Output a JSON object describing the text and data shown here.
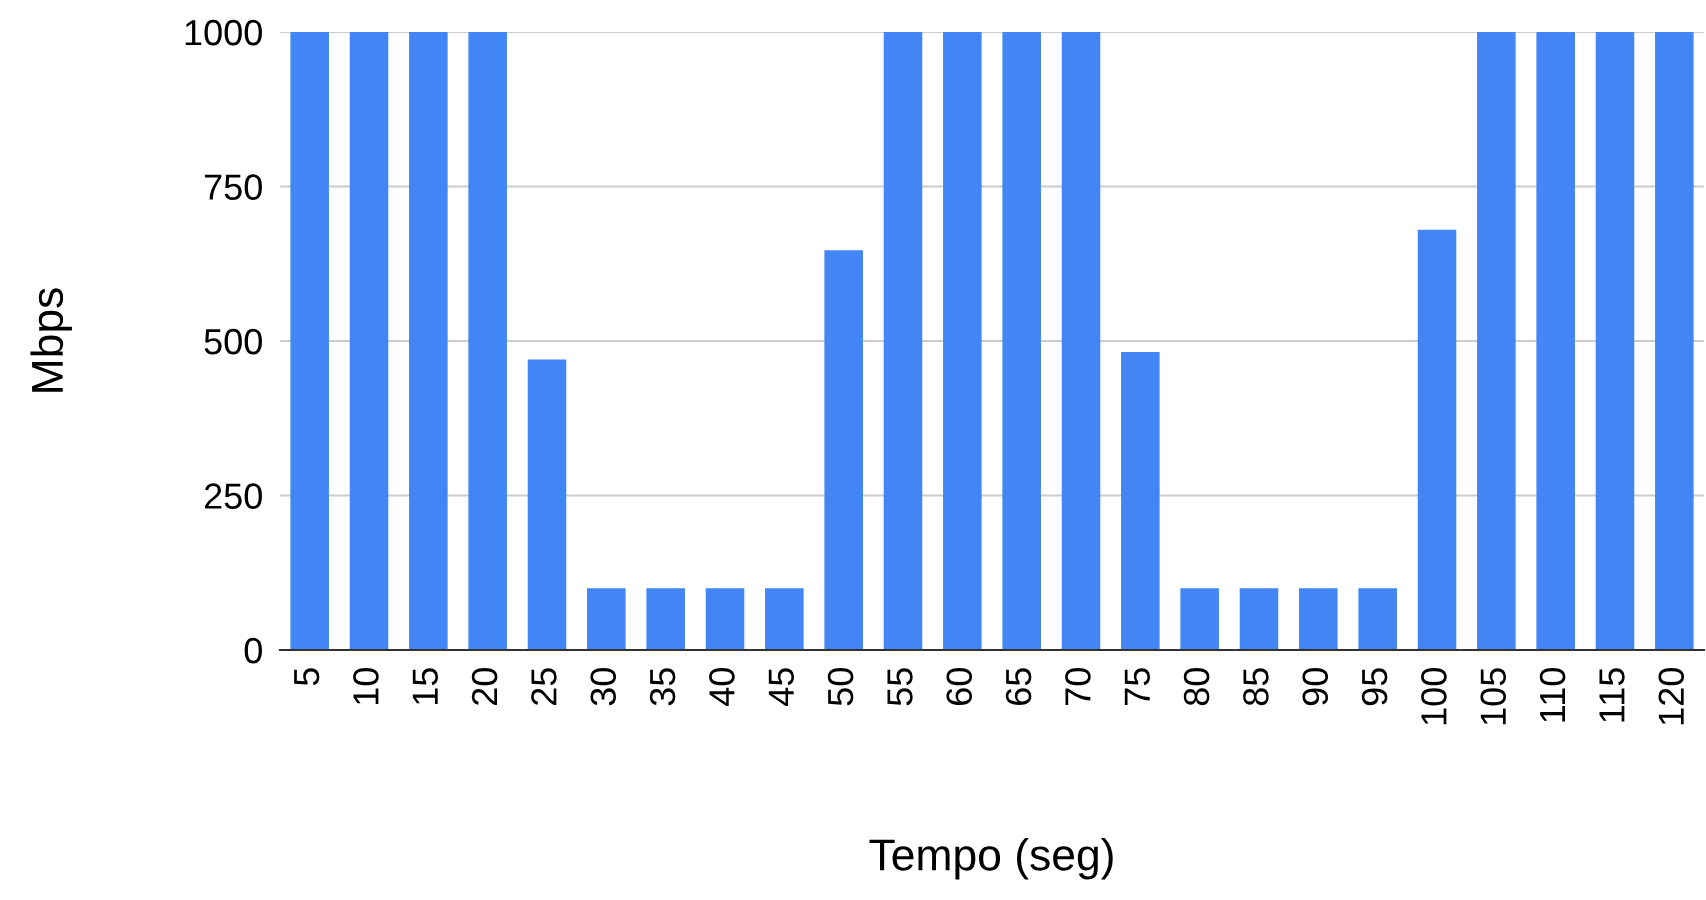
{
  "chart_data": {
    "type": "bar",
    "xlabel": "Tempo (seg)",
    "ylabel": "Mbps",
    "categories": [
      "5",
      "10",
      "15",
      "20",
      "25",
      "30",
      "35",
      "40",
      "45",
      "50",
      "55",
      "60",
      "65",
      "70",
      "75",
      "80",
      "85",
      "90",
      "95",
      "100",
      "105",
      "110",
      "115",
      "120"
    ],
    "values": [
      1000,
      1000,
      1000,
      1000,
      470,
      100,
      100,
      100,
      100,
      647,
      1000,
      1000,
      1000,
      1000,
      482,
      100,
      100,
      100,
      100,
      680,
      1000,
      1000,
      1000,
      1000
    ],
    "color": "#4285f4",
    "ylim": [
      0,
      1000
    ],
    "yticks": [
      0,
      250,
      500,
      750,
      1000
    ],
    "grid": "y"
  }
}
